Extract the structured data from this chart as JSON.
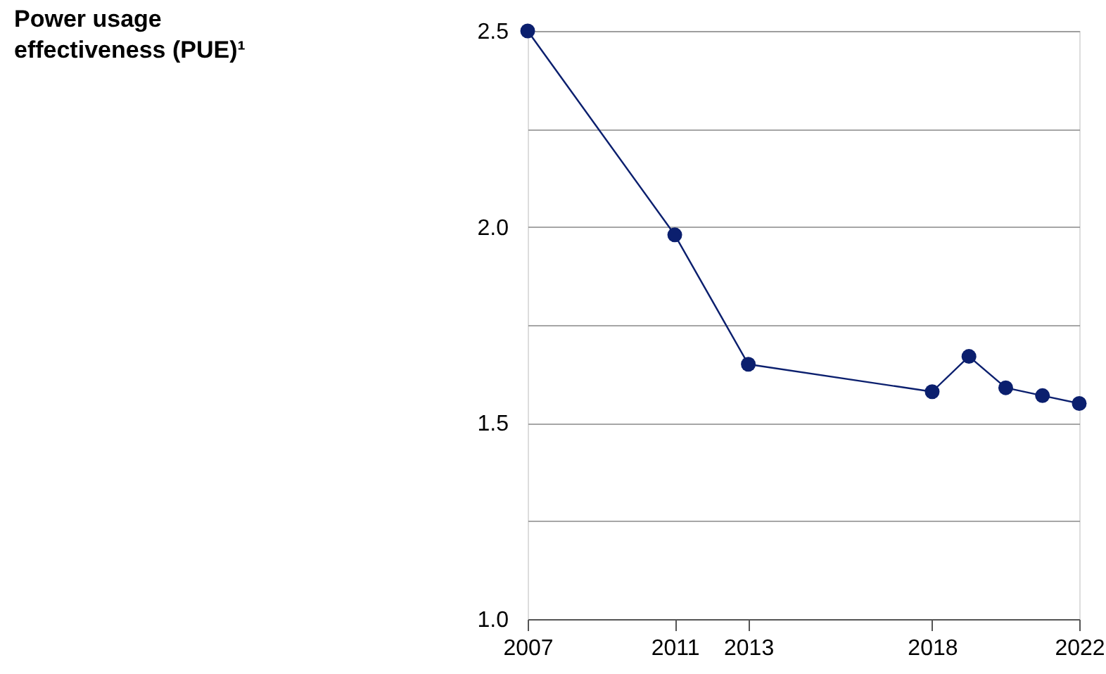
{
  "chart_data": {
    "type": "line",
    "title": "Power usage effectiveness (PUE)¹",
    "x": [
      2007,
      2011,
      2013,
      2018,
      2019,
      2020,
      2021,
      2022
    ],
    "series": [
      {
        "color": "#0b1f6e",
        "values": [
          2.5,
          1.98,
          1.65,
          1.58,
          1.67,
          1.59,
          1.57,
          1.55
        ]
      }
    ],
    "xlim": [
      2007,
      2022
    ],
    "xticks": [
      2007,
      2011,
      2013,
      2018,
      2022
    ],
    "ylim": [
      1.0,
      2.5
    ],
    "yticks": [
      {
        "value": 1.0,
        "label": "1.0"
      },
      {
        "value": 1.25,
        "label": null
      },
      1.5,
      {
        "value": 1.75,
        "label": null
      },
      {
        "value": 2.0,
        "label": "2.0"
      },
      {
        "value": 2.25,
        "label": null
      },
      2.5
    ],
    "grid": "y",
    "marker": "circle",
    "line_style": "solid",
    "legend": false
  }
}
